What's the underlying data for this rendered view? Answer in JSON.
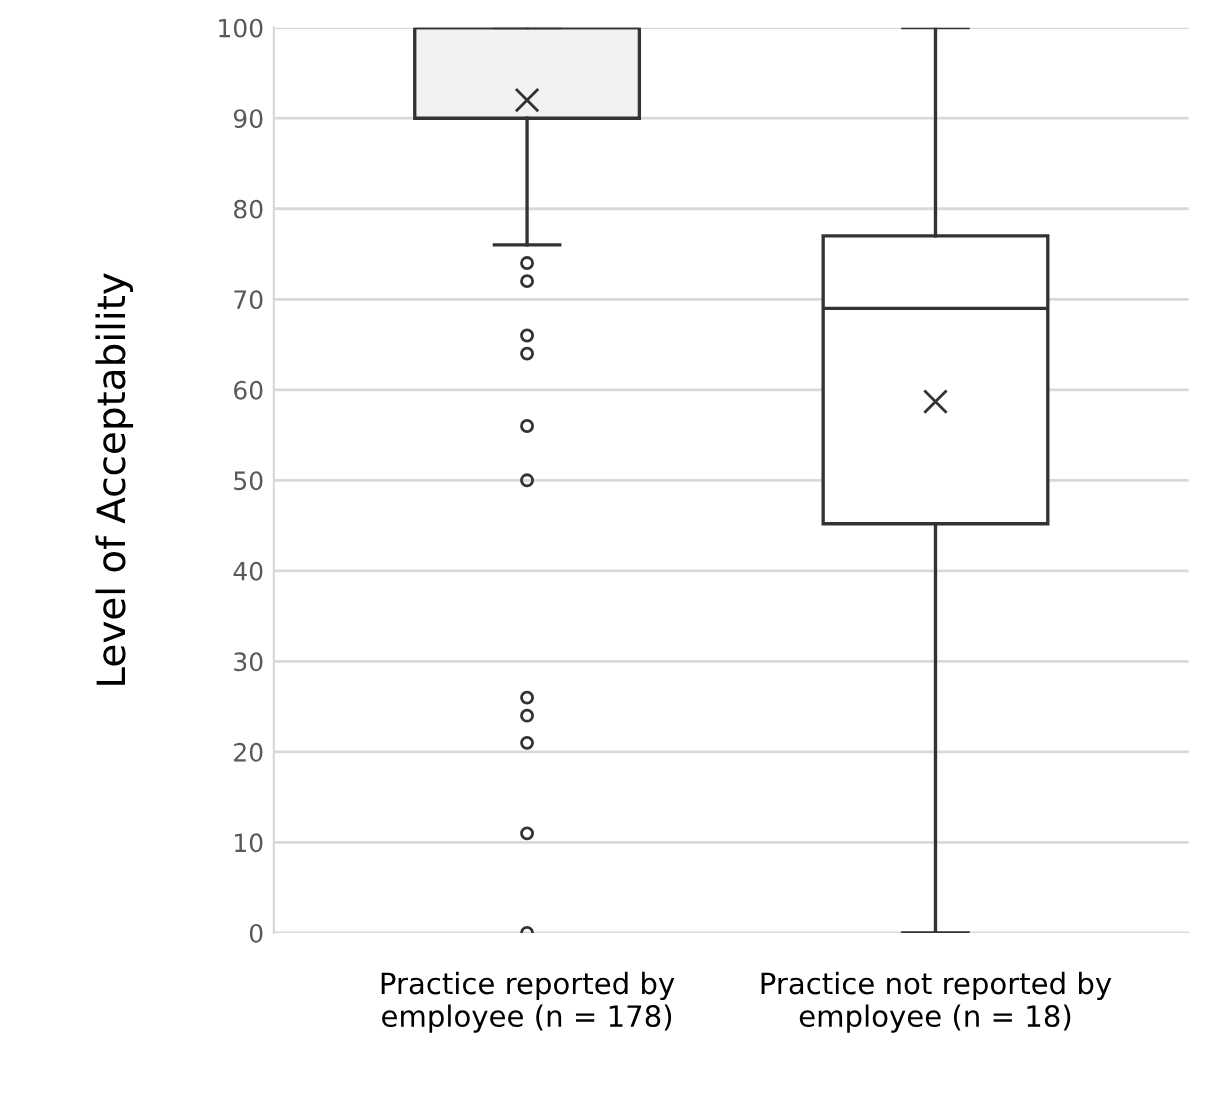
{
  "chart_data": {
    "type": "box",
    "ylabel": "Level of Acceptability",
    "categories": [
      "Practice reported by employee (n = 178)",
      "Practice not reported by employee (n = 18)"
    ],
    "colors": [
      "#f2f2f2",
      "#ffffff"
    ],
    "boxes": [
      {
        "low": 76,
        "q1": 90,
        "median": 100,
        "q3": 100,
        "high": 100,
        "mean": 92,
        "outliers": [
          74,
          72,
          66,
          64,
          56,
          50,
          26,
          24,
          21,
          11,
          0
        ]
      },
      {
        "low": 0,
        "q1": 45.2,
        "median": 69,
        "q3": 77,
        "high": 100,
        "mean": 58.7
      }
    ],
    "ylim": [
      0,
      100
    ],
    "yticks": [
      0,
      10,
      20,
      30,
      40,
      50,
      60,
      70,
      80,
      90,
      100
    ],
    "grid": "y"
  }
}
